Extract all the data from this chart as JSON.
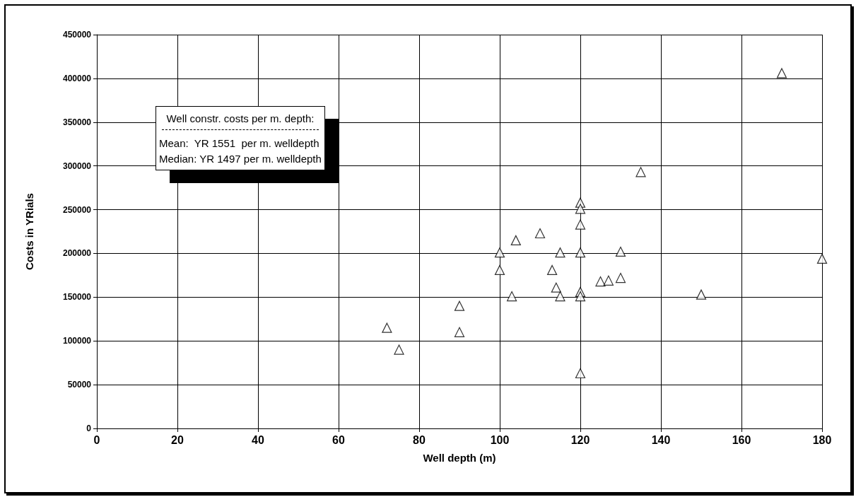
{
  "chart_data": {
    "type": "scatter",
    "xlabel": "Well depth (m)",
    "ylabel": "Costs in YRials",
    "x": [
      72,
      75,
      90,
      90,
      100,
      100,
      103,
      104,
      110,
      113,
      114,
      115,
      115,
      120,
      120,
      120,
      120,
      120,
      120,
      120,
      125,
      127,
      130,
      130,
      135,
      150,
      170,
      180
    ],
    "values": [
      115000,
      90000,
      140000,
      110000,
      201000,
      181000,
      151000,
      215000,
      223000,
      181000,
      161000,
      151000,
      201000,
      258000,
      251000,
      233000,
      201000,
      156000,
      151000,
      63000,
      168000,
      169000,
      172000,
      202000,
      293000,
      153000,
      406000,
      194000
    ],
    "color": "#000000",
    "marker": "triangle",
    "xlim": [
      0,
      180
    ],
    "xticks": [
      0,
      20,
      40,
      60,
      80,
      100,
      120,
      140,
      160,
      180
    ],
    "ylim": [
      0,
      450000
    ],
    "yticks": [
      0,
      50000,
      100000,
      150000,
      200000,
      250000,
      300000,
      350000,
      400000,
      450000
    ],
    "grid": true,
    "annotations": [
      "Well constr. costs per m. depth:",
      "Mean:  YR 1551  per m. welldepth",
      "Median: YR 1497 per m. welldepth"
    ]
  }
}
